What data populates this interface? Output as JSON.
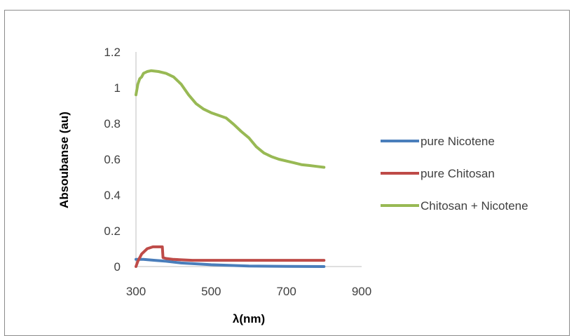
{
  "chart_data": {
    "type": "line",
    "xlabel": "λ(nm)",
    "ylabel": "Absoubanse (au)",
    "xlim": [
      300,
      900
    ],
    "ylim": [
      0,
      1.2
    ],
    "x_ticks": [
      "300",
      "500",
      "700",
      "900"
    ],
    "y_ticks": [
      "0",
      "0.2",
      "0.4",
      "0.6",
      "0.8",
      "1",
      "1.2"
    ],
    "grid": false,
    "legend_position": "right",
    "series": [
      {
        "name": "pure Nicotene",
        "color": "#4a7ebb",
        "points": [
          [
            300,
            0.04
          ],
          [
            320,
            0.04
          ],
          [
            350,
            0.035
          ],
          [
            380,
            0.03
          ],
          [
            420,
            0.02
          ],
          [
            500,
            0.01
          ],
          [
            600,
            0.003
          ],
          [
            700,
            0.001
          ],
          [
            800,
            0.0
          ]
        ]
      },
      {
        "name": "pure Chitosan",
        "color": "#be4b48",
        "points": [
          [
            300,
            0.0
          ],
          [
            305,
            0.03
          ],
          [
            315,
            0.07
          ],
          [
            330,
            0.1
          ],
          [
            345,
            0.11
          ],
          [
            360,
            0.11
          ],
          [
            370,
            0.11
          ],
          [
            372,
            0.05
          ],
          [
            380,
            0.045
          ],
          [
            400,
            0.04
          ],
          [
            450,
            0.035
          ],
          [
            500,
            0.035
          ],
          [
            600,
            0.035
          ],
          [
            700,
            0.035
          ],
          [
            800,
            0.035
          ]
        ]
      },
      {
        "name": "Chitosan + Nicotene",
        "color": "#98b954",
        "points": [
          [
            300,
            0.96
          ],
          [
            305,
            1.02
          ],
          [
            310,
            1.05
          ],
          [
            315,
            1.06
          ],
          [
            320,
            1.08
          ],
          [
            330,
            1.09
          ],
          [
            340,
            1.095
          ],
          [
            360,
            1.09
          ],
          [
            380,
            1.08
          ],
          [
            400,
            1.06
          ],
          [
            420,
            1.02
          ],
          [
            440,
            0.96
          ],
          [
            460,
            0.91
          ],
          [
            480,
            0.88
          ],
          [
            500,
            0.86
          ],
          [
            520,
            0.845
          ],
          [
            540,
            0.83
          ],
          [
            560,
            0.795
          ],
          [
            580,
            0.755
          ],
          [
            600,
            0.72
          ],
          [
            620,
            0.67
          ],
          [
            640,
            0.635
          ],
          [
            660,
            0.615
          ],
          [
            680,
            0.6
          ],
          [
            700,
            0.59
          ],
          [
            720,
            0.58
          ],
          [
            740,
            0.57
          ],
          [
            760,
            0.565
          ],
          [
            780,
            0.56
          ],
          [
            800,
            0.555
          ]
        ]
      }
    ]
  }
}
